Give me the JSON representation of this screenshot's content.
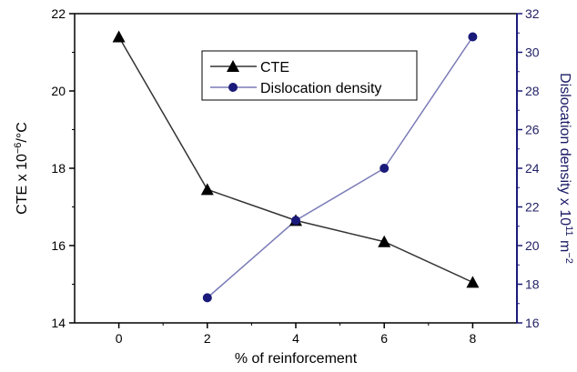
{
  "chart_data": {
    "type": "line",
    "xlabel": "% of reinforcement",
    "ylabel_left": "CTE x 10",
    "ylabel_left_sup": "−6",
    "ylabel_left_tail": "/°C",
    "ylabel_right": "Dislocation density x 10",
    "ylabel_right_sup": "11",
    "ylabel_right_mid": " m",
    "ylabel_right_sup2": "−2",
    "xlim": [
      -1,
      9
    ],
    "ylim_left": [
      14,
      22
    ],
    "ylim_right": [
      16,
      32
    ],
    "x_ticks": [
      "0",
      "2",
      "4",
      "6",
      "8"
    ],
    "y_left_ticks": [
      "14",
      "16",
      "18",
      "20",
      "22"
    ],
    "y_right_ticks": [
      "16",
      "18",
      "20",
      "22",
      "24",
      "26",
      "28",
      "30",
      "32"
    ],
    "legend_position": "upper-center",
    "grid": false,
    "series": [
      {
        "name": "CTE",
        "axis": "left",
        "marker": "triangle",
        "color": "#000000",
        "line_color": "#333333",
        "x": [
          0,
          2,
          4,
          6,
          8
        ],
        "values": [
          21.4,
          17.45,
          16.65,
          16.1,
          15.05
        ]
      },
      {
        "name": "Dislocation density",
        "axis": "right",
        "marker": "circle",
        "color": "#1a1a7a",
        "line_color": "#7a7ab8",
        "x": [
          2,
          4,
          6,
          8
        ],
        "values": [
          17.3,
          21.3,
          24.0,
          30.8
        ]
      }
    ]
  }
}
